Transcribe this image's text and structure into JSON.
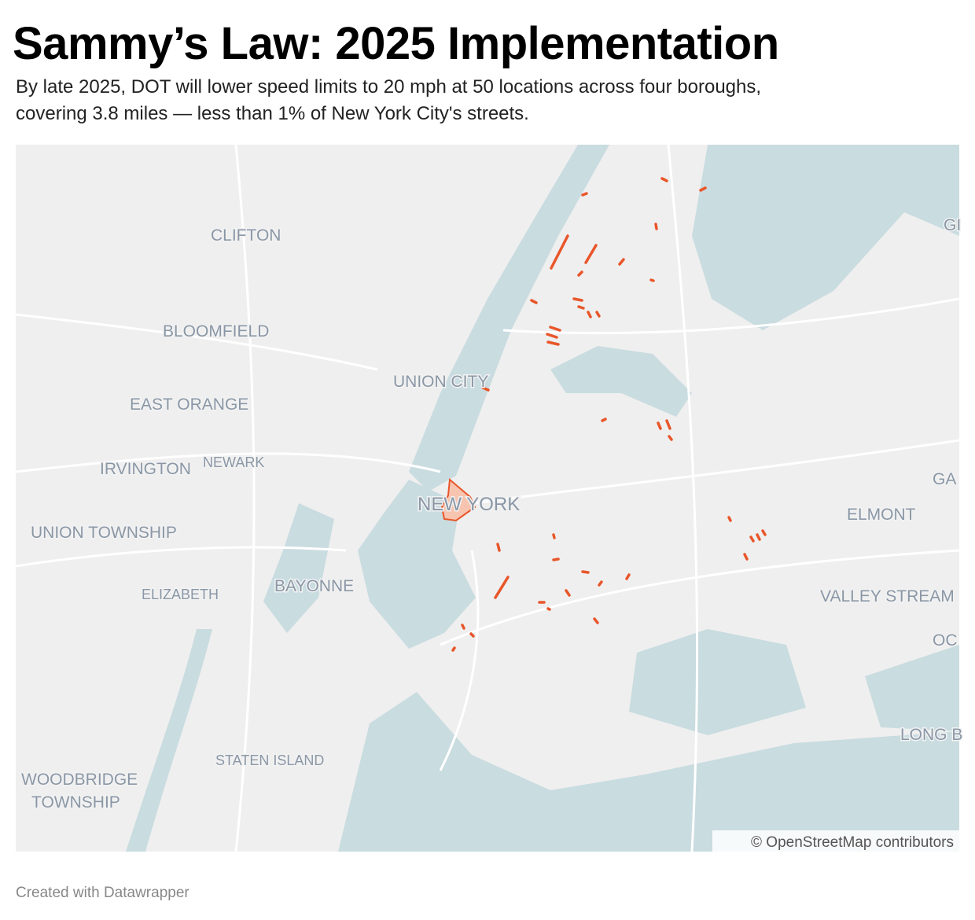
{
  "header": {
    "title": "Sammy’s Law: 2025 Implementation",
    "subtitle": [
      "By late 2025, DOT will lower speed limits to 20 mph at 50 locations across four boroughs,",
      "covering 3.8 miles — less than 1% of New York City's streets."
    ]
  },
  "map": {
    "labels": [
      "CLIFTON",
      "BLOOMFIELD",
      "UNION CITY",
      "EAST ORANGE",
      "IRVINGTON",
      "NEWARK",
      "NEW YORK",
      "UNION TOWNSHIP",
      "ELMONT",
      "BAYONNE",
      "ELIZABETH",
      "VALLEY STREAM",
      "STATEN ISLAND",
      "WOODBRIDGE",
      "TOWNSHIP",
      "GI",
      "GA",
      "OC",
      "LONG B"
    ],
    "attribution": "© OpenStreetMap contributors"
  },
  "footer": {
    "credit": "Created with Datawrapper"
  }
}
